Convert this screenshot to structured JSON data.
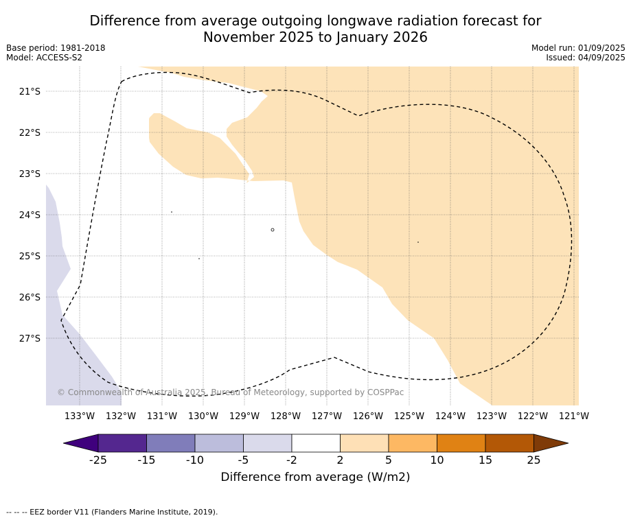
{
  "header": {
    "title_line1": "Difference from average outgoing longwave radiation forecast for",
    "title_line2": "November 2025 to January 2026",
    "base_period": "Base period: 1981-2018",
    "model": "Model: ACCESS-S2",
    "model_run": "Model run: 01/09/2025",
    "issued": "Issued: 04/09/2025"
  },
  "map": {
    "lat_labels": [
      "21°S",
      "22°S",
      "23°S",
      "24°S",
      "25°S",
      "26°S",
      "27°S"
    ],
    "lon_labels": [
      "133°W",
      "132°W",
      "131°W",
      "130°W",
      "129°W",
      "128°W",
      "127°W",
      "126°W",
      "125°W",
      "124°W",
      "123°W",
      "122°W",
      "121°W"
    ],
    "copyright": "© Commonwealth of Australia 2025, Bureau of Meteorology, supported by COSPPac",
    "colors": {
      "light_orange": "#fde3b9",
      "light_purple": "#dadaeb",
      "background": "#ffffff"
    }
  },
  "colorbar": {
    "label": "Difference from average (W/m2)",
    "ticks": [
      "-25",
      "-15",
      "-10",
      "-5",
      "-2",
      "2",
      "5",
      "10",
      "15",
      "25"
    ],
    "colors": [
      "#3f007d",
      "#54278f",
      "#807dba",
      "#bcbddc",
      "#dadaeb",
      "#ffffff",
      "#fee0b6",
      "#fdb863",
      "#e08214",
      "#b35806",
      "#7f3b08"
    ]
  },
  "footnote": "--  --  -- EEZ border V11 (Flanders Marine Institute, 2019)."
}
